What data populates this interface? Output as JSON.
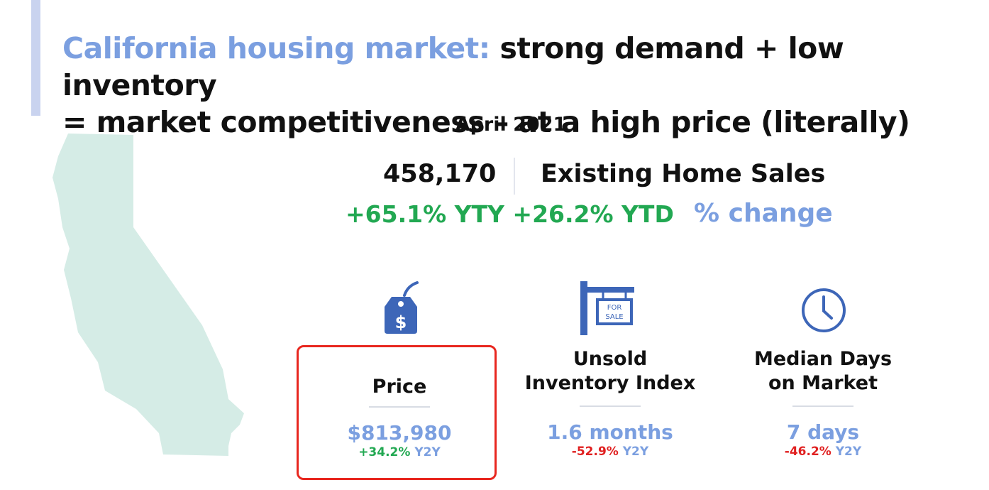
{
  "header": {
    "title_highlight": "California housing market:",
    "title_line1_rest": " strong demand + low inventory",
    "title_line2": "= market competitiveness – at a high price (literally)",
    "date": "April 2021"
  },
  "sales": {
    "value": "458,170",
    "label": "Existing Home Sales",
    "changes": "+65.1% YTY +26.2% YTD",
    "change_label": "% change"
  },
  "metrics": [
    {
      "title_line1": "Price",
      "title_line2": "",
      "value": "$813,980",
      "change": "+34.2%",
      "unit": "Y2Y",
      "icon": "price-tag-icon"
    },
    {
      "title_line1": "Unsold",
      "title_line2": "Inventory Index",
      "value": "1.6 months",
      "change": "-52.9%",
      "unit": "Y2Y",
      "icon": "for-sale-sign-icon"
    },
    {
      "title_line1": "Median Days",
      "title_line2": "on Market",
      "value": "7 days",
      "change": "-46.2%",
      "unit": "Y2Y",
      "icon": "clock-icon"
    }
  ],
  "for_sale_sign_text": [
    "FOR",
    "SALE"
  ],
  "colors": {
    "accent": "#7b9fe0",
    "positive": "#22a852",
    "negative": "#e02020",
    "map": "#d5ece6",
    "highlight_box": "#e8271f"
  }
}
